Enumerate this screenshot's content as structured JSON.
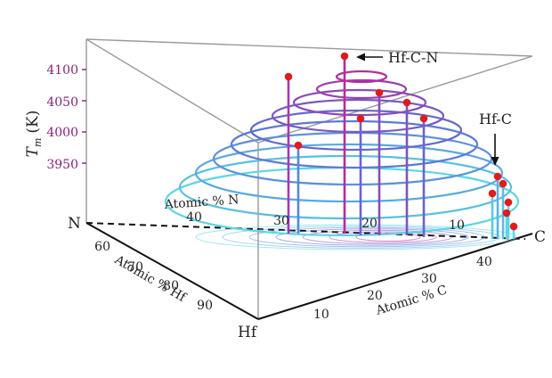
{
  "chart_data": {
    "type": "3d-surface-contour",
    "z_axis": {
      "label": "T",
      "label_subscript": "m",
      "label_unit": "(K)",
      "ticks": [
        3950,
        4000,
        4050,
        4100
      ]
    },
    "axis_n": {
      "label": "Atomic % N",
      "ticks": [
        40,
        30,
        20,
        10
      ]
    },
    "axis_hf": {
      "label": "Atomic % Hf",
      "ticks": [
        60,
        70,
        80,
        90
      ]
    },
    "axis_c": {
      "label": "Atomic % C",
      "ticks": [
        10,
        20,
        30,
        40
      ]
    },
    "corners": {
      "n": "N",
      "hf": "Hf",
      "c": "C"
    },
    "annotations": [
      {
        "id": "hfcn",
        "text": "Hf-C-N"
      },
      {
        "id": "hfc",
        "text": "Hf-C"
      }
    ],
    "contour_levels": [
      3900,
      3925,
      3950,
      3975,
      4000,
      4025,
      4050,
      4075,
      4100,
      4125
    ],
    "colors": {
      "low": "#5ad6e6",
      "mid": "#5a6fd8",
      "high": "#b02fa0",
      "points": "#e01b1b",
      "frame": "#999999"
    }
  }
}
